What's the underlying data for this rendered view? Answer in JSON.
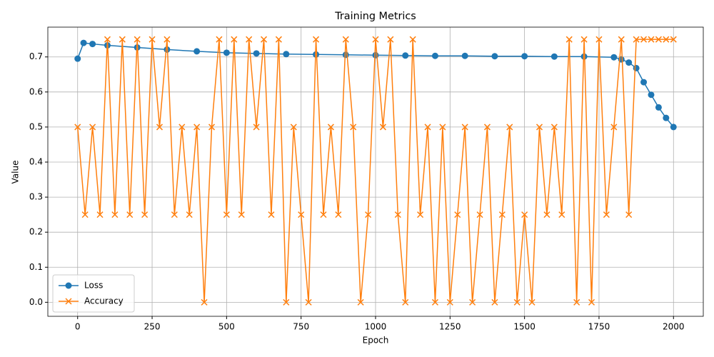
{
  "chart_data": {
    "type": "line",
    "title": "Training Metrics",
    "xlabel": "Epoch",
    "ylabel": "Value",
    "xlim": [
      -100,
      2100
    ],
    "xticks": [
      0,
      250,
      500,
      750,
      1000,
      1250,
      1500,
      1750,
      2000
    ],
    "ylim": [
      -0.04,
      0.785
    ],
    "yticks": [
      {
        "value": 0,
        "label": "0.0"
      },
      {
        "value": 0.1,
        "label": "0.1"
      },
      {
        "value": 0.2,
        "label": "0.2"
      },
      {
        "value": 0.3,
        "label": "0.3"
      },
      {
        "value": 0.4,
        "label": "0.4"
      },
      {
        "value": 0.5,
        "label": "0.5"
      },
      {
        "value": 0.6,
        "label": "0.6"
      },
      {
        "value": 0.7,
        "label": "0.7"
      }
    ],
    "grid": true,
    "legend": "lower left",
    "series": [
      {
        "name": "Loss",
        "color": "#1f77b4",
        "marker": "circle",
        "x": [
          0,
          20,
          50,
          100,
          200,
          300,
          400,
          500,
          600,
          700,
          800,
          900,
          1000,
          1100,
          1200,
          1300,
          1400,
          1500,
          1600,
          1700,
          1800,
          1825,
          1850,
          1875,
          1900,
          1925,
          1950,
          1975,
          2000
        ],
        "values": [
          0.695,
          0.74,
          0.737,
          0.733,
          0.727,
          0.721,
          0.716,
          0.712,
          0.71,
          0.708,
          0.707,
          0.706,
          0.705,
          0.704,
          0.703,
          0.703,
          0.702,
          0.702,
          0.701,
          0.701,
          0.699,
          0.693,
          0.684,
          0.668,
          0.628,
          0.592,
          0.556,
          0.526,
          0.5
        ]
      },
      {
        "name": "Accuracy",
        "color": "#ff7f0e",
        "marker": "x",
        "x": [
          0,
          25,
          50,
          75,
          100,
          125,
          150,
          175,
          200,
          225,
          250,
          275,
          300,
          325,
          350,
          375,
          400,
          425,
          450,
          475,
          500,
          525,
          550,
          575,
          600,
          625,
          650,
          675,
          700,
          725,
          750,
          775,
          800,
          825,
          850,
          875,
          900,
          925,
          950,
          975,
          1000,
          1025,
          1050,
          1075,
          1100,
          1125,
          1150,
          1175,
          1200,
          1225,
          1250,
          1275,
          1300,
          1325,
          1350,
          1375,
          1400,
          1425,
          1450,
          1475,
          1500,
          1525,
          1550,
          1575,
          1600,
          1625,
          1650,
          1675,
          1700,
          1725,
          1750,
          1775,
          1800,
          1825,
          1850,
          1875,
          1900,
          1925,
          1950,
          1975,
          2000
        ],
        "values": [
          0.5,
          0.25,
          0.5,
          0.25,
          0.75,
          0.25,
          0.75,
          0.25,
          0.75,
          0.25,
          0.75,
          0.5,
          0.75,
          0.25,
          0.5,
          0.25,
          0.5,
          0,
          0.5,
          0.75,
          0.25,
          0.75,
          0.25,
          0.75,
          0.5,
          0.75,
          0.25,
          0.75,
          0,
          0.5,
          0.25,
          0,
          0.75,
          0.25,
          0.5,
          0.25,
          0.75,
          0.5,
          0,
          0.25,
          0.75,
          0.5,
          0.75,
          0.25,
          0,
          0.75,
          0.25,
          0.5,
          0,
          0.5,
          0,
          0.25,
          0.5,
          0,
          0.25,
          0.5,
          0,
          0.25,
          0.5,
          0,
          0.25,
          0,
          0.5,
          0.25,
          0.5,
          0.25,
          0.75,
          0,
          0.75,
          0,
          0.75,
          0.25,
          0.5,
          0.75,
          0.25,
          0.75,
          0.75,
          0.75,
          0.75,
          0.75,
          0.75
        ]
      }
    ]
  }
}
